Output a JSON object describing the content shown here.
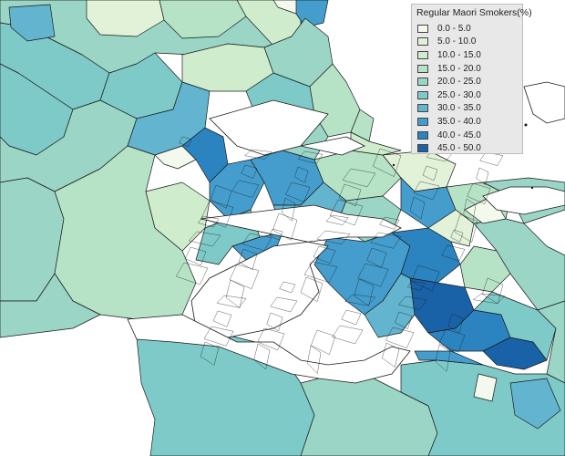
{
  "legend": {
    "title": "Regular Maori Smokers(%)",
    "classes": [
      {
        "label": "0.0 - 5.0",
        "color": "#f3f9ec"
      },
      {
        "label": "5.0 - 10.0",
        "color": "#e2f2d9"
      },
      {
        "label": "10.0 - 15.0",
        "color": "#cfeccc"
      },
      {
        "label": "15.0 - 20.0",
        "color": "#b6e2c6"
      },
      {
        "label": "20.0 - 25.0",
        "color": "#9bd5c6"
      },
      {
        "label": "25.0 - 30.0",
        "color": "#7ecac9"
      },
      {
        "label": "30.0 - 35.0",
        "color": "#62b4cf"
      },
      {
        "label": "35.0 - 40.0",
        "color": "#449dcc"
      },
      {
        "label": "40.0 - 45.0",
        "color": "#2b84c0"
      },
      {
        "label": "45.0 - 50.0",
        "color": "#1a62a8"
      }
    ]
  },
  "colors": {
    "water": "#ffffff",
    "boundary": "#1a1a1a",
    "legend_bg": "#e8e8e8"
  }
}
